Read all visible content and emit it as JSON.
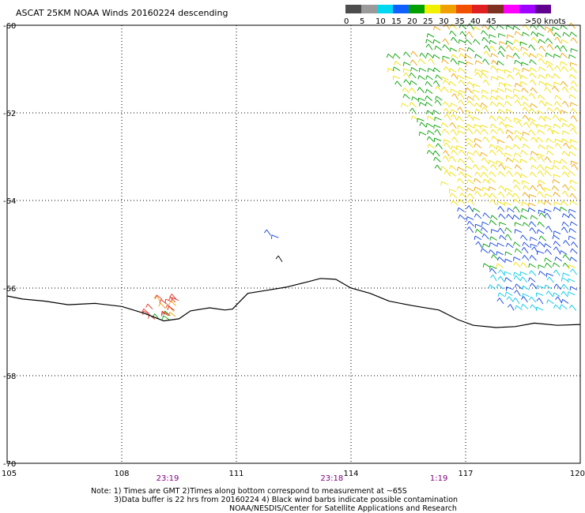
{
  "title": "ASCAT 25KM NOAA Winds 20160224 descending",
  "legend": {
    "bins": [
      {
        "label": "0",
        "color": "#4d4d4d"
      },
      {
        "label": "5",
        "color": "#9a9a9a"
      },
      {
        "label": "10",
        "color": "#00d8f0"
      },
      {
        "label": "15",
        "color": "#1060ff"
      },
      {
        "label": "20",
        "color": "#00a000"
      },
      {
        "label": "25",
        "color": "#f0f000"
      },
      {
        "label": "30",
        "color": "#f0a000"
      },
      {
        "label": "35",
        "color": "#f05000"
      },
      {
        "label": "40",
        "color": "#e02020"
      },
      {
        "label": "45",
        "color": "#803020"
      },
      {
        "label": "",
        "color": "#ff00ff"
      },
      {
        "label": "",
        "color": "#a000ff"
      },
      {
        "label": "",
        "color": "#600090"
      }
    ],
    "end_label": ">50 knots"
  },
  "chart_data": {
    "type": "scatter",
    "xlim": [
      105,
      120
    ],
    "ylim": [
      -70,
      -60
    ],
    "x_ticks": [
      "105",
      "108",
      "111",
      "114",
      "117",
      "120"
    ],
    "y_ticks": [
      "-60",
      "-62",
      "-64",
      "-66",
      "-68",
      "-70"
    ],
    "grid": true,
    "time_labels": [
      {
        "text": "23:19",
        "lon": 109.2
      },
      {
        "text": "23:18",
        "lon": 113.5
      },
      {
        "text": "1:19",
        "lon": 116.3
      }
    ],
    "coastline": [
      [
        105,
        -66.18
      ],
      [
        105.4,
        -66.25
      ],
      [
        106,
        -66.3
      ],
      [
        106.6,
        -66.38
      ],
      [
        107.3,
        -66.35
      ],
      [
        108,
        -66.42
      ],
      [
        108.6,
        -66.58
      ],
      [
        109.1,
        -66.75
      ],
      [
        109.5,
        -66.7
      ],
      [
        109.8,
        -66.52
      ],
      [
        110.3,
        -66.45
      ],
      [
        110.7,
        -66.5
      ],
      [
        110.9,
        -66.48
      ],
      [
        111.1,
        -66.3
      ],
      [
        111.3,
        -66.12
      ],
      [
        111.8,
        -66.05
      ],
      [
        112.3,
        -65.98
      ],
      [
        112.9,
        -65.85
      ],
      [
        113.2,
        -65.78
      ],
      [
        113.6,
        -65.8
      ],
      [
        114,
        -66.0
      ],
      [
        114.5,
        -66.12
      ],
      [
        115,
        -66.3
      ],
      [
        115.6,
        -66.4
      ],
      [
        116.3,
        -66.5
      ],
      [
        116.8,
        -66.72
      ],
      [
        117.2,
        -66.85
      ],
      [
        117.8,
        -66.9
      ],
      [
        118.3,
        -66.88
      ],
      [
        118.8,
        -66.8
      ],
      [
        119.4,
        -66.85
      ],
      [
        120,
        -66.83
      ]
    ],
    "barb_swath": {
      "lon": [
        112.2,
        120
      ],
      "lat": [
        -66.6,
        -60
      ],
      "spacing": 0.16,
      "colors_by_zone": [
        "green",
        "yellow",
        "blue",
        "cyan"
      ]
    }
  },
  "notes": [
    "Note: 1) Times are GMT 2)Times along bottom correspond to measurement at ~65S",
    "3)Data buffer is 22 hrs from 20160224 4) Black wind barbs indicate possible contamination",
    "NOAA/NESDIS/Center for Satellite Applications and Research"
  ]
}
